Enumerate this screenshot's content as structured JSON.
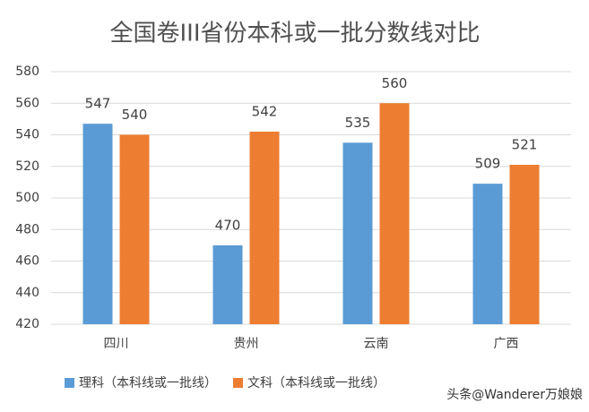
{
  "chart_data": {
    "type": "bar",
    "title": "全国卷III省份本科或一批分数线对比",
    "categories": [
      "四川",
      "贵州",
      "云南",
      "广西"
    ],
    "series": [
      {
        "name": "理科（本科线或一批线）",
        "color": "#5b9bd5",
        "values": [
          547,
          470,
          535,
          509
        ]
      },
      {
        "name": "文科（本科线或一批线）",
        "color": "#ed7d31",
        "values": [
          540,
          542,
          560,
          521
        ]
      }
    ],
    "ylim": [
      420,
      580
    ],
    "yticks": [
      420,
      440,
      460,
      480,
      500,
      520,
      540,
      560,
      580
    ],
    "grid": true,
    "legend": "bottom",
    "watermark": "头条@Wanderer万娘娘"
  }
}
